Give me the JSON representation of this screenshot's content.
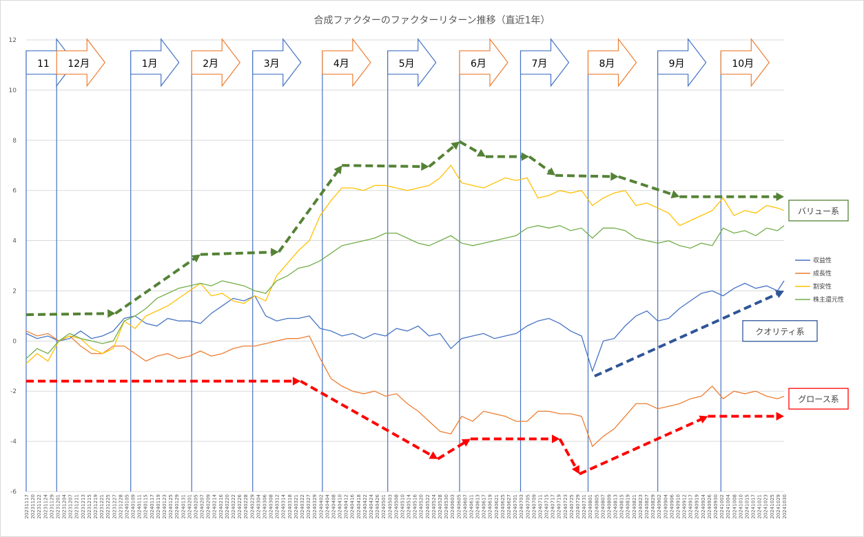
{
  "chart_data": {
    "type": "line",
    "title": "合成ファクターのファクターリターン推移（直近1年）",
    "ylim": [
      -6,
      12
    ],
    "yticks": [
      -6,
      -4,
      -2,
      0,
      2,
      4,
      6,
      8,
      10,
      12
    ],
    "grid": true,
    "legend": "right",
    "x_dates": [
      "20231117",
      "20231122",
      "20231127",
      "20231202",
      "20231207",
      "20231212",
      "20231217",
      "20231222",
      "20231227",
      "20240101",
      "20240106",
      "20240111",
      "20240116",
      "20240121",
      "20240126",
      "20240131",
      "20240205",
      "20240210",
      "20240215",
      "20240220",
      "20240225",
      "20240301",
      "20240306",
      "20240311",
      "20240316",
      "20240321",
      "20240326",
      "20240331",
      "20240405",
      "20240410",
      "20240415",
      "20240420",
      "20240425",
      "20240430",
      "20240505",
      "20240510",
      "20240515",
      "20240520",
      "20240525",
      "20240530",
      "20240604",
      "20240609",
      "20240614",
      "20240619",
      "20240624",
      "20240629",
      "20240704",
      "20240709",
      "20240714",
      "20240719",
      "20240724",
      "20240729",
      "20240803",
      "20240808",
      "20240813",
      "20240818",
      "20240823",
      "20240828",
      "20240902",
      "20240907",
      "20240912",
      "20240917",
      "20240922",
      "20240927",
      "20241002",
      "20241007",
      "20241012",
      "20241017",
      "20241022",
      "20241027",
      "20241030"
    ],
    "tick_labels": [
      "20231117",
      "20231120",
      "20231122",
      "20231124",
      "20231129",
      "20231201",
      "20231204",
      "20231207",
      "20231211",
      "20231213",
      "20231215",
      "20231219",
      "20231221",
      "20231225",
      "20231227",
      "20231228",
      "20240105",
      "20240109",
      "20240111",
      "20240115",
      "20240117",
      "20240119",
      "20240123",
      "20240125",
      "20240129",
      "20240131",
      "20240201",
      "20240205",
      "20240207",
      "20240209",
      "20240214",
      "20240216",
      "20240220",
      "20240222",
      "20240226",
      "20240228",
      "20240229",
      "20240304",
      "20240306",
      "20240308",
      "20240312",
      "20240314",
      "20240318",
      "20240321",
      "20240322",
      "20240327",
      "20240329",
      "20240402",
      "20240404",
      "20240408",
      "20240410",
      "20240412",
      "20240416",
      "20240418",
      "20240422",
      "20240424",
      "20240426",
      "20240501",
      "20240503",
      "20240508",
      "20240510",
      "20240514",
      "20240516",
      "20240520",
      "20240522",
      "20240524",
      "20240528",
      "20240530",
      "20240603",
      "20240605",
      "20240607",
      "20240611",
      "20240613",
      "20240617",
      "20240619",
      "20240621",
      "20240625",
      "20240627",
      "20240701",
      "20240703",
      "20240705",
      "20240709",
      "20240711",
      "20240715",
      "20240717",
      "20240719",
      "20240723",
      "20240725",
      "20240729",
      "20240731",
      "20240801",
      "20240805",
      "20240807",
      "20240809",
      "20240813",
      "20240815",
      "20240819",
      "20240821",
      "20240823",
      "20240827",
      "20240829",
      "20240902",
      "20240904",
      "20240906",
      "20240910",
      "20240912",
      "20240917",
      "20240919",
      "20240924",
      "20240926",
      "20240930",
      "20241002",
      "20241004",
      "20241008",
      "20241010",
      "20241015",
      "20241017",
      "20241021",
      "20241023",
      "20241025",
      "20241029",
      "20241030"
    ],
    "series": [
      {
        "name": "収益性",
        "color": "#4472C4",
        "values": [
          0.3,
          0.1,
          0.2,
          0.0,
          0.1,
          0.4,
          0.1,
          0.2,
          0.4,
          0.9,
          1.0,
          0.7,
          0.6,
          0.9,
          0.8,
          0.8,
          0.7,
          1.1,
          1.4,
          1.7,
          1.6,
          1.8,
          1.0,
          0.8,
          0.9,
          0.9,
          1.0,
          0.5,
          0.4,
          0.2,
          0.3,
          0.1,
          0.3,
          0.2,
          0.5,
          0.4,
          0.6,
          0.2,
          0.3,
          -0.3,
          0.1,
          0.2,
          0.3,
          0.1,
          0.2,
          0.3,
          0.6,
          0.8,
          0.9,
          0.7,
          0.4,
          0.2,
          -1.2,
          0.0,
          0.1,
          0.6,
          1.0,
          1.2,
          0.8,
          0.9,
          1.3,
          1.6,
          1.9,
          2.0,
          1.8,
          2.1,
          2.3,
          2.1,
          2.2,
          2.0,
          2.4
        ]
      },
      {
        "name": "成長性",
        "color": "#ED7D31",
        "values": [
          0.4,
          0.2,
          0.3,
          0.0,
          0.2,
          -0.2,
          -0.5,
          -0.5,
          -0.2,
          -0.2,
          -0.5,
          -0.8,
          -0.6,
          -0.5,
          -0.7,
          -0.6,
          -0.4,
          -0.6,
          -0.5,
          -0.3,
          -0.2,
          -0.2,
          -0.1,
          0.0,
          0.1,
          0.1,
          0.2,
          -0.7,
          -1.5,
          -1.8,
          -2.0,
          -2.1,
          -2.0,
          -2.2,
          -2.1,
          -2.5,
          -2.8,
          -3.2,
          -3.6,
          -3.7,
          -3.0,
          -3.2,
          -2.8,
          -2.9,
          -3.0,
          -3.2,
          -3.2,
          -2.8,
          -2.8,
          -2.9,
          -2.9,
          -3.0,
          -4.2,
          -3.8,
          -3.5,
          -3.0,
          -2.5,
          -2.5,
          -2.7,
          -2.6,
          -2.5,
          -2.3,
          -2.2,
          -1.8,
          -2.3,
          -2.0,
          -2.1,
          -2.0,
          -2.2,
          -2.3,
          -2.2
        ]
      },
      {
        "name": "割安性",
        "color": "#FFC000",
        "values": [
          -0.9,
          -0.5,
          -0.8,
          0.0,
          0.2,
          0.1,
          -0.3,
          -0.5,
          -0.3,
          0.8,
          0.5,
          1.0,
          1.2,
          1.4,
          1.7,
          2.0,
          2.3,
          1.8,
          1.9,
          1.6,
          1.5,
          1.8,
          1.6,
          2.6,
          3.1,
          3.6,
          4.0,
          5.0,
          5.6,
          6.1,
          6.1,
          6.0,
          6.2,
          6.2,
          6.1,
          6.0,
          6.1,
          6.2,
          6.5,
          7.0,
          6.3,
          6.2,
          6.1,
          6.3,
          6.5,
          6.4,
          6.5,
          5.7,
          5.8,
          6.0,
          5.9,
          6.0,
          5.4,
          5.7,
          5.9,
          6.0,
          5.4,
          5.5,
          5.3,
          5.1,
          4.6,
          4.8,
          5.0,
          5.2,
          5.7,
          5.0,
          5.2,
          5.1,
          5.4,
          5.3,
          5.2
        ]
      },
      {
        "name": "株主還元性",
        "color": "#70AD47",
        "values": [
          -0.7,
          -0.3,
          -0.5,
          0.0,
          0.3,
          0.1,
          0.0,
          -0.1,
          0.0,
          0.8,
          1.0,
          1.3,
          1.7,
          1.9,
          2.1,
          2.2,
          2.3,
          2.2,
          2.4,
          2.3,
          2.2,
          2.0,
          1.9,
          2.4,
          2.6,
          2.9,
          3.0,
          3.2,
          3.5,
          3.8,
          3.9,
          4.0,
          4.1,
          4.3,
          4.3,
          4.1,
          3.9,
          3.8,
          4.0,
          4.2,
          3.9,
          3.8,
          3.9,
          4.0,
          4.1,
          4.2,
          4.5,
          4.6,
          4.5,
          4.6,
          4.4,
          4.5,
          4.1,
          4.5,
          4.5,
          4.4,
          4.1,
          4.0,
          3.9,
          4.0,
          3.8,
          3.7,
          3.9,
          3.8,
          4.5,
          4.3,
          4.4,
          4.2,
          4.5,
          4.4,
          4.6
        ]
      }
    ],
    "month_banners": [
      {
        "label": "11",
        "color": "#4472C4",
        "x": "20231117"
      },
      {
        "label": "12月",
        "color": "#ED7D31",
        "x": "20231201"
      },
      {
        "label": "1月",
        "color": "#4472C4",
        "x": "20240104"
      },
      {
        "label": "2月",
        "color": "#ED7D31",
        "x": "20240201"
      },
      {
        "label": "3月",
        "color": "#4472C4",
        "x": "20240229"
      },
      {
        "label": "4月",
        "color": "#ED7D31",
        "x": "20240401"
      },
      {
        "label": "5月",
        "color": "#4472C4",
        "x": "20240501"
      },
      {
        "label": "6月",
        "color": "#ED7D31",
        "x": "20240603"
      },
      {
        "label": "7月",
        "color": "#4472C4",
        "x": "20240701"
      },
      {
        "label": "8月",
        "color": "#ED7D31",
        "x": "20240801"
      },
      {
        "label": "9月",
        "color": "#4472C4",
        "x": "20240902"
      },
      {
        "label": "10月",
        "color": "#ED7D31",
        "x": "20241001"
      }
    ],
    "trend_arrows": [
      {
        "color": "#548235",
        "points": [
          [
            "20231117",
            1.05
          ],
          [
            "20231228",
            1.1
          ],
          [
            "20240205",
            3.45
          ],
          [
            "20240312",
            3.55
          ],
          [
            "20240410",
            7.0
          ],
          [
            "20240520",
            6.95
          ],
          [
            "20240603",
            7.95
          ],
          [
            "20240615",
            7.35
          ],
          [
            "20240705",
            7.35
          ],
          [
            "20240717",
            6.6
          ],
          [
            "20240815",
            6.55
          ],
          [
            "20240912",
            5.75
          ],
          [
            "20241030",
            5.75
          ]
        ]
      },
      {
        "color": "#FF0000",
        "points": [
          [
            "20231117",
            -1.6
          ],
          [
            "20240322",
            -1.6
          ],
          [
            "20240524",
            -4.7
          ],
          [
            "20240608",
            -3.9
          ],
          [
            "20240719",
            -3.9
          ],
          [
            "20240728",
            -5.3
          ],
          [
            "20240925",
            -3.0
          ],
          [
            "20241030",
            -3.0
          ]
        ]
      },
      {
        "color": "#2F5597",
        "points": [
          [
            "20240804",
            -1.4
          ],
          [
            "20241030",
            2.0
          ]
        ]
      }
    ],
    "annotations": [
      {
        "text": "バリュー系",
        "color": "#548235",
        "y": 5.2
      },
      {
        "text": "クオリティ系",
        "color": "#2F5597",
        "y": 0.4
      },
      {
        "text": "グロース系",
        "color": "#FF0000",
        "y": -2.3
      }
    ]
  }
}
